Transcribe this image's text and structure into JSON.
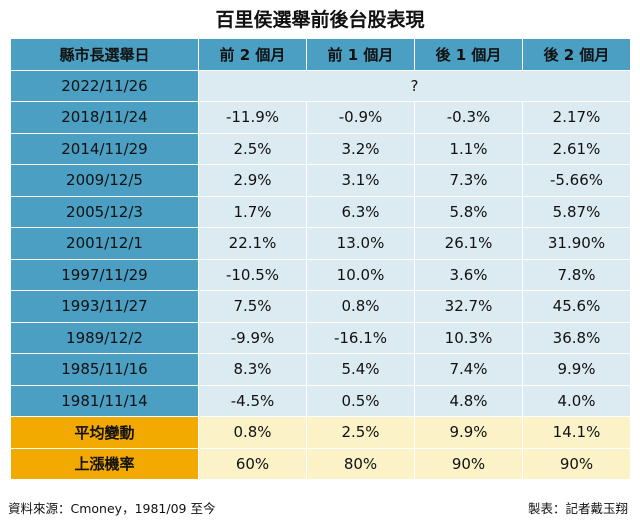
{
  "title": "百里侯選舉前後台股表現",
  "headers": [
    "縣市長選舉日",
    "前 2 個月",
    "前 1 個月",
    "後 1 個月",
    "後 2 個月"
  ],
  "current_row": {
    "date": "2022/11/26",
    "value": "?"
  },
  "rows": [
    {
      "date": "2018/11/24",
      "values": [
        "-11.9%",
        "-0.9%",
        "-0.3%",
        "2.17%"
      ]
    },
    {
      "date": "2014/11/29",
      "values": [
        "2.5%",
        "3.2%",
        "1.1%",
        "2.61%"
      ]
    },
    {
      "date": "2009/12/5",
      "values": [
        "2.9%",
        "3.1%",
        "7.3%",
        "-5.66%"
      ]
    },
    {
      "date": "2005/12/3",
      "values": [
        "1.7%",
        "6.3%",
        "5.8%",
        "5.87%"
      ]
    },
    {
      "date": "2001/12/1",
      "values": [
        "22.1%",
        "13.0%",
        "26.1%",
        "31.90%"
      ]
    },
    {
      "date": "1997/11/29",
      "values": [
        "-10.5%",
        "10.0%",
        "3.6%",
        "7.8%"
      ]
    },
    {
      "date": "1993/11/27",
      "values": [
        "7.5%",
        "0.8%",
        "32.7%",
        "45.6%"
      ]
    },
    {
      "date": "1989/12/2",
      "values": [
        "-9.9%",
        "-16.1%",
        "10.3%",
        "36.8%"
      ]
    },
    {
      "date": "1985/11/16",
      "values": [
        "8.3%",
        "5.4%",
        "7.4%",
        "9.9%"
      ]
    },
    {
      "date": "1981/11/14",
      "values": [
        "-4.5%",
        "0.5%",
        "4.8%",
        "4.0%"
      ]
    }
  ],
  "summary": [
    {
      "label": "平均變動",
      "values": [
        "0.8%",
        "2.5%",
        "9.9%",
        "14.1%"
      ]
    },
    {
      "label": "上漲機率",
      "values": [
        "60%",
        "80%",
        "90%",
        "90%"
      ]
    }
  ],
  "footer": {
    "source": "資料來源：Cmoney，1981/09 至今",
    "credit": "製表：記者戴玉翔"
  },
  "colors": {
    "header_blue": "#4a9fc3",
    "cell_light_blue": "#dcebf1",
    "summary_orange": "#f2a900",
    "summary_light": "#fcf2c8"
  }
}
